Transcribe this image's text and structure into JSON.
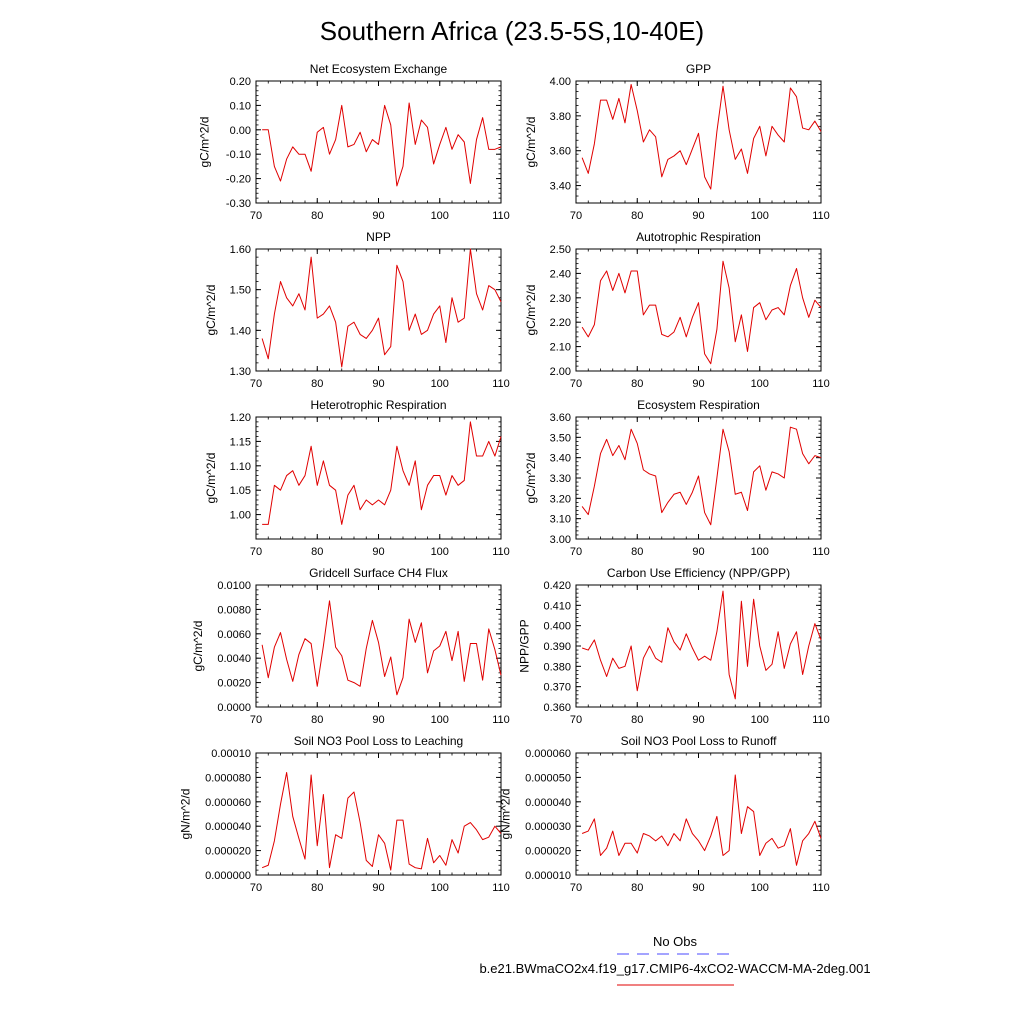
{
  "title": "Southern Africa (23.5-5S,10-40E)",
  "legend": {
    "items": [
      {
        "label": "No Obs",
        "color": "#4a4aff",
        "dash": true
      },
      {
        "label": "b.e21.BWmaCO2x4.f19_g17.CMIP6-4xCO2-WACCM-MA-2deg.001",
        "color": "#e00000",
        "dash": false
      }
    ]
  },
  "chart_data": [
    {
      "type": "line",
      "title": "Net Ecosystem Exchange",
      "ylabel": "gC/m^2/d",
      "xlim": [
        70,
        110
      ],
      "xticks": [
        70,
        80,
        90,
        100,
        110
      ],
      "ylim": [
        -0.3,
        0.2
      ],
      "yticks": [
        "0.20",
        "0.10",
        "0.00",
        "-0.10",
        "-0.20",
        "-0.30"
      ],
      "ytick_values": [
        0.2,
        0.1,
        0.0,
        -0.1,
        -0.2,
        -0.3
      ],
      "x": [
        71,
        72,
        73,
        74,
        75,
        76,
        77,
        78,
        79,
        80,
        81,
        82,
        83,
        84,
        85,
        86,
        87,
        88,
        89,
        90,
        91,
        92,
        93,
        94,
        95,
        96,
        97,
        98,
        99,
        100,
        101,
        102,
        103,
        104,
        105,
        106,
        107,
        108,
        109,
        110
      ],
      "series": [
        {
          "color": "#e00000",
          "values": [
            0.0,
            0.0,
            -0.15,
            -0.21,
            -0.12,
            -0.07,
            -0.1,
            -0.1,
            -0.17,
            -0.01,
            0.01,
            -0.1,
            -0.04,
            0.1,
            -0.07,
            -0.06,
            -0.01,
            -0.09,
            -0.04,
            -0.06,
            0.1,
            0.02,
            -0.23,
            -0.15,
            0.11,
            -0.06,
            0.04,
            0.01,
            -0.14,
            -0.06,
            0.01,
            -0.08,
            -0.02,
            -0.05,
            -0.22,
            -0.04,
            0.05,
            -0.08,
            -0.08,
            -0.07
          ]
        }
      ]
    },
    {
      "type": "line",
      "title": "GPP",
      "ylabel": "gC/m^2/d",
      "xlim": [
        70,
        110
      ],
      "xticks": [
        70,
        80,
        90,
        100,
        110
      ],
      "ylim": [
        3.3,
        4.0
      ],
      "yticks": [
        "4.00",
        "3.80",
        "3.60",
        "3.40"
      ],
      "ytick_values": [
        4.0,
        3.8,
        3.6,
        3.4
      ],
      "x": [
        71,
        72,
        73,
        74,
        75,
        76,
        77,
        78,
        79,
        80,
        81,
        82,
        83,
        84,
        85,
        86,
        87,
        88,
        89,
        90,
        91,
        92,
        93,
        94,
        95,
        96,
        97,
        98,
        99,
        100,
        101,
        102,
        103,
        104,
        105,
        106,
        107,
        108,
        109,
        110
      ],
      "series": [
        {
          "color": "#e00000",
          "values": [
            3.56,
            3.47,
            3.64,
            3.89,
            3.89,
            3.78,
            3.9,
            3.76,
            3.98,
            3.83,
            3.65,
            3.72,
            3.68,
            3.45,
            3.55,
            3.57,
            3.6,
            3.52,
            3.61,
            3.7,
            3.45,
            3.38,
            3.71,
            3.97,
            3.72,
            3.55,
            3.61,
            3.47,
            3.67,
            3.74,
            3.57,
            3.74,
            3.69,
            3.65,
            3.96,
            3.91,
            3.73,
            3.72,
            3.77,
            3.71
          ]
        }
      ]
    },
    {
      "type": "line",
      "title": "NPP",
      "ylabel": "gC/m^2/d",
      "xlim": [
        70,
        110
      ],
      "xticks": [
        70,
        80,
        90,
        100,
        110
      ],
      "ylim": [
        1.3,
        1.6
      ],
      "yticks": [
        "1.60",
        "1.50",
        "1.40",
        "1.30"
      ],
      "ytick_values": [
        1.6,
        1.5,
        1.4,
        1.3
      ],
      "x": [
        71,
        72,
        73,
        74,
        75,
        76,
        77,
        78,
        79,
        80,
        81,
        82,
        83,
        84,
        85,
        86,
        87,
        88,
        89,
        90,
        91,
        92,
        93,
        94,
        95,
        96,
        97,
        98,
        99,
        100,
        101,
        102,
        103,
        104,
        105,
        106,
        107,
        108,
        109,
        110
      ],
      "series": [
        {
          "color": "#e00000",
          "values": [
            1.38,
            1.33,
            1.44,
            1.52,
            1.48,
            1.46,
            1.49,
            1.45,
            1.58,
            1.43,
            1.44,
            1.46,
            1.42,
            1.31,
            1.41,
            1.42,
            1.39,
            1.38,
            1.4,
            1.43,
            1.34,
            1.36,
            1.56,
            1.52,
            1.4,
            1.44,
            1.39,
            1.4,
            1.44,
            1.46,
            1.37,
            1.48,
            1.42,
            1.43,
            1.6,
            1.49,
            1.45,
            1.51,
            1.5,
            1.47
          ]
        }
      ]
    },
    {
      "type": "line",
      "title": "Autotrophic Respiration",
      "ylabel": "gC/m^2/d",
      "xlim": [
        70,
        110
      ],
      "xticks": [
        70,
        80,
        90,
        100,
        110
      ],
      "ylim": [
        2.0,
        2.5
      ],
      "yticks": [
        "2.50",
        "2.40",
        "2.30",
        "2.20",
        "2.10",
        "2.00"
      ],
      "ytick_values": [
        2.5,
        2.4,
        2.3,
        2.2,
        2.1,
        2.0
      ],
      "x": [
        71,
        72,
        73,
        74,
        75,
        76,
        77,
        78,
        79,
        80,
        81,
        82,
        83,
        84,
        85,
        86,
        87,
        88,
        89,
        90,
        91,
        92,
        93,
        94,
        95,
        96,
        97,
        98,
        99,
        100,
        101,
        102,
        103,
        104,
        105,
        106,
        107,
        108,
        109,
        110
      ],
      "series": [
        {
          "color": "#e00000",
          "values": [
            2.18,
            2.14,
            2.19,
            2.37,
            2.41,
            2.33,
            2.4,
            2.32,
            2.41,
            2.41,
            2.23,
            2.27,
            2.27,
            2.15,
            2.14,
            2.16,
            2.22,
            2.14,
            2.22,
            2.28,
            2.07,
            2.03,
            2.17,
            2.45,
            2.34,
            2.12,
            2.23,
            2.08,
            2.26,
            2.28,
            2.21,
            2.25,
            2.26,
            2.23,
            2.35,
            2.42,
            2.3,
            2.22,
            2.29,
            2.26
          ]
        }
      ]
    },
    {
      "type": "line",
      "title": "Heterotrophic Respiration",
      "ylabel": "gC/m^2/d",
      "xlim": [
        70,
        110
      ],
      "xticks": [
        70,
        80,
        90,
        100,
        110
      ],
      "ylim": [
        0.95,
        1.2
      ],
      "yticks": [
        "1.20",
        "1.15",
        "1.10",
        "1.05",
        "1.00"
      ],
      "ytick_values": [
        1.2,
        1.15,
        1.1,
        1.05,
        1.0
      ],
      "x": [
        71,
        72,
        73,
        74,
        75,
        76,
        77,
        78,
        79,
        80,
        81,
        82,
        83,
        84,
        85,
        86,
        87,
        88,
        89,
        90,
        91,
        92,
        93,
        94,
        95,
        96,
        97,
        98,
        99,
        100,
        101,
        102,
        103,
        104,
        105,
        106,
        107,
        108,
        109,
        110
      ],
      "series": [
        {
          "color": "#e00000",
          "values": [
            0.98,
            0.98,
            1.06,
            1.05,
            1.08,
            1.09,
            1.06,
            1.08,
            1.14,
            1.06,
            1.11,
            1.06,
            1.05,
            0.98,
            1.04,
            1.06,
            1.01,
            1.03,
            1.02,
            1.03,
            1.02,
            1.05,
            1.14,
            1.09,
            1.06,
            1.11,
            1.01,
            1.06,
            1.08,
            1.08,
            1.04,
            1.08,
            1.06,
            1.07,
            1.19,
            1.12,
            1.12,
            1.15,
            1.12,
            1.16
          ]
        }
      ]
    },
    {
      "type": "line",
      "title": "Ecosystem Respiration",
      "ylabel": "gC/m^2/d",
      "xlim": [
        70,
        110
      ],
      "xticks": [
        70,
        80,
        90,
        100,
        110
      ],
      "ylim": [
        3.0,
        3.6
      ],
      "yticks": [
        "3.60",
        "3.50",
        "3.40",
        "3.30",
        "3.20",
        "3.10",
        "3.00"
      ],
      "ytick_values": [
        3.6,
        3.5,
        3.4,
        3.3,
        3.2,
        3.1,
        3.0
      ],
      "x": [
        71,
        72,
        73,
        74,
        75,
        76,
        77,
        78,
        79,
        80,
        81,
        82,
        83,
        84,
        85,
        86,
        87,
        88,
        89,
        90,
        91,
        92,
        93,
        94,
        95,
        96,
        97,
        98,
        99,
        100,
        101,
        102,
        103,
        104,
        105,
        106,
        107,
        108,
        109,
        110
      ],
      "series": [
        {
          "color": "#e00000",
          "values": [
            3.16,
            3.12,
            3.26,
            3.42,
            3.49,
            3.41,
            3.46,
            3.39,
            3.54,
            3.47,
            3.34,
            3.32,
            3.31,
            3.13,
            3.18,
            3.22,
            3.23,
            3.17,
            3.23,
            3.31,
            3.13,
            3.07,
            3.3,
            3.54,
            3.43,
            3.22,
            3.23,
            3.14,
            3.33,
            3.36,
            3.24,
            3.33,
            3.32,
            3.3,
            3.55,
            3.54,
            3.42,
            3.37,
            3.41,
            3.4
          ]
        }
      ]
    },
    {
      "type": "line",
      "title": "Gridcell Surface CH4 Flux",
      "ylabel": "gC/m^2/d",
      "xlim": [
        70,
        110
      ],
      "xticks": [
        70,
        80,
        90,
        100,
        110
      ],
      "ylim": [
        0.0,
        0.01
      ],
      "yticks": [
        "0.0100",
        "0.0080",
        "0.0060",
        "0.0040",
        "0.0020",
        "0.0000"
      ],
      "ytick_values": [
        0.01,
        0.008,
        0.006,
        0.004,
        0.002,
        0.0
      ],
      "x": [
        71,
        72,
        73,
        74,
        75,
        76,
        77,
        78,
        79,
        80,
        81,
        82,
        83,
        84,
        85,
        86,
        87,
        88,
        89,
        90,
        91,
        92,
        93,
        94,
        95,
        96,
        97,
        98,
        99,
        100,
        101,
        102,
        103,
        104,
        105,
        106,
        107,
        108,
        109,
        110
      ],
      "series": [
        {
          "color": "#e00000",
          "values": [
            0.0051,
            0.0024,
            0.0049,
            0.0061,
            0.0039,
            0.0021,
            0.0043,
            0.0056,
            0.0052,
            0.0017,
            0.005,
            0.0087,
            0.0049,
            0.0042,
            0.0022,
            0.002,
            0.0017,
            0.0048,
            0.0071,
            0.0053,
            0.0025,
            0.0041,
            0.001,
            0.0024,
            0.0072,
            0.0053,
            0.0069,
            0.0028,
            0.0046,
            0.005,
            0.0062,
            0.0038,
            0.0062,
            0.0021,
            0.0052,
            0.0052,
            0.0022,
            0.0064,
            0.0047,
            0.0026
          ]
        }
      ]
    },
    {
      "type": "line",
      "title": "Carbon Use Efficiency (NPP/GPP)",
      "ylabel": "NPP/GPP",
      "xlim": [
        70,
        110
      ],
      "xticks": [
        70,
        80,
        90,
        100,
        110
      ],
      "ylim": [
        0.36,
        0.42
      ],
      "yticks": [
        "0.420",
        "0.410",
        "0.400",
        "0.390",
        "0.380",
        "0.370",
        "0.360"
      ],
      "ytick_values": [
        0.42,
        0.41,
        0.4,
        0.39,
        0.38,
        0.37,
        0.36
      ],
      "x": [
        71,
        72,
        73,
        74,
        75,
        76,
        77,
        78,
        79,
        80,
        81,
        82,
        83,
        84,
        85,
        86,
        87,
        88,
        89,
        90,
        91,
        92,
        93,
        94,
        95,
        96,
        97,
        98,
        99,
        100,
        101,
        102,
        103,
        104,
        105,
        106,
        107,
        108,
        109,
        110
      ],
      "series": [
        {
          "color": "#e00000",
          "values": [
            0.389,
            0.388,
            0.393,
            0.383,
            0.375,
            0.384,
            0.379,
            0.38,
            0.39,
            0.368,
            0.384,
            0.39,
            0.384,
            0.382,
            0.399,
            0.392,
            0.388,
            0.396,
            0.389,
            0.383,
            0.385,
            0.383,
            0.397,
            0.417,
            0.376,
            0.364,
            0.412,
            0.38,
            0.413,
            0.39,
            0.378,
            0.381,
            0.397,
            0.379,
            0.391,
            0.397,
            0.376,
            0.39,
            0.401,
            0.393
          ]
        }
      ]
    },
    {
      "type": "line",
      "title": "Soil NO3 Pool Loss to Leaching",
      "ylabel": "gN/m^2/d",
      "xlim": [
        70,
        110
      ],
      "xticks": [
        70,
        80,
        90,
        100,
        110
      ],
      "ylim": [
        0.0,
        0.0001
      ],
      "yticks": [
        "0.00010",
        "0.000080",
        "0.000060",
        "0.000040",
        "0.000020",
        "0.000000"
      ],
      "ytick_values": [
        0.0001,
        8e-05,
        6e-05,
        4e-05,
        2e-05,
        0.0
      ],
      "x": [
        71,
        72,
        73,
        74,
        75,
        76,
        77,
        78,
        79,
        80,
        81,
        82,
        83,
        84,
        85,
        86,
        87,
        88,
        89,
        90,
        91,
        92,
        93,
        94,
        95,
        96,
        97,
        98,
        99,
        100,
        101,
        102,
        103,
        104,
        105,
        106,
        107,
        108,
        109,
        110
      ],
      "series": [
        {
          "color": "#e00000",
          "values": [
            6e-06,
            8e-06,
            2.8e-05,
            5.8e-05,
            8.4e-05,
            4.8e-05,
            3e-05,
            1.3e-05,
            8.2e-05,
            2.4e-05,
            6.6e-05,
            6e-06,
            3.3e-05,
            3e-05,
            6.3e-05,
            6.8e-05,
            4.3e-05,
            1.2e-05,
            7e-06,
            3.3e-05,
            2.6e-05,
            4e-06,
            4.5e-05,
            4.5e-05,
            9e-06,
            6e-06,
            5e-06,
            3e-05,
            1e-05,
            1.6e-05,
            8e-06,
            2.9e-05,
            1.8e-05,
            4e-05,
            4.3e-05,
            3.7e-05,
            2.9e-05,
            3.1e-05,
            4e-05,
            3.4e-05
          ]
        }
      ]
    },
    {
      "type": "line",
      "title": "Soil NO3 Pool Loss to Runoff",
      "ylabel": "gN/m^2/d",
      "xlim": [
        70,
        110
      ],
      "xticks": [
        70,
        80,
        90,
        100,
        110
      ],
      "ylim": [
        1e-05,
        6e-05
      ],
      "yticks": [
        "0.000060",
        "0.000050",
        "0.000040",
        "0.000030",
        "0.000020",
        "0.000010"
      ],
      "ytick_values": [
        6e-05,
        5e-05,
        4e-05,
        3e-05,
        2e-05,
        1e-05
      ],
      "x": [
        71,
        72,
        73,
        74,
        75,
        76,
        77,
        78,
        79,
        80,
        81,
        82,
        83,
        84,
        85,
        86,
        87,
        88,
        89,
        90,
        91,
        92,
        93,
        94,
        95,
        96,
        97,
        98,
        99,
        100,
        101,
        102,
        103,
        104,
        105,
        106,
        107,
        108,
        109,
        110
      ],
      "series": [
        {
          "color": "#e00000",
          "values": [
            2.7e-05,
            2.8e-05,
            3.3e-05,
            1.8e-05,
            2.1e-05,
            2.8e-05,
            1.8e-05,
            2.3e-05,
            2.3e-05,
            1.9e-05,
            2.7e-05,
            2.6e-05,
            2.4e-05,
            2.6e-05,
            2.2e-05,
            2.7e-05,
            2.4e-05,
            3.3e-05,
            2.7e-05,
            2.4e-05,
            2e-05,
            2.6e-05,
            3.4e-05,
            1.8e-05,
            2e-05,
            5.1e-05,
            2.7e-05,
            3.8e-05,
            3.6e-05,
            1.8e-05,
            2.3e-05,
            2.5e-05,
            2.1e-05,
            2.2e-05,
            2.9e-05,
            1.4e-05,
            2.4e-05,
            2.7e-05,
            3.2e-05,
            2.5e-05
          ]
        }
      ]
    }
  ]
}
